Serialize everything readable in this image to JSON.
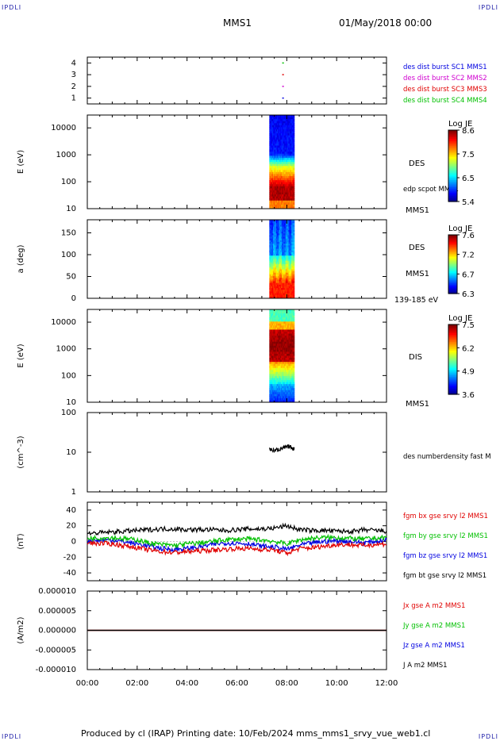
{
  "corners": {
    "tl": "IPDLI",
    "tr": "IPDLI",
    "bl": "IPDLI",
    "br": "IPDLI"
  },
  "header": {
    "spacecraft": "MMS1",
    "datetime": "01/May/2018 00:00"
  },
  "footer": {
    "text": "Produced by cl (IRAP)   Printing date: 10/Feb/2024   mms_mms1_srvy_vue_web1.cl"
  },
  "time_axis": {
    "ticks": [
      "00:00",
      "02:00",
      "04:00",
      "06:00",
      "08:00",
      "10:00",
      "12:00"
    ],
    "range_hours": [
      0,
      12
    ]
  },
  "colors": {
    "red": "#e00000",
    "green": "#00c000",
    "blue": "#0000e0",
    "magenta": "#d000d0",
    "black": "#000000"
  },
  "chart_data": [
    {
      "type": "scatter",
      "panel": "burst-availability",
      "y_ticks": [
        "1",
        "2",
        "3",
        "4"
      ],
      "ylim": [
        0.5,
        4.5
      ],
      "legend": [
        {
          "label": "des dist burst SC1 MMS1",
          "color": "#0000e0"
        },
        {
          "label": "des dist burst SC2 MMS2",
          "color": "#d000d0"
        },
        {
          "label": "des dist burst SC3 MMS3",
          "color": "#e00000"
        },
        {
          "label": "des dist burst SC4 MMS4",
          "color": "#00c000"
        }
      ],
      "series": [
        {
          "name": "des dist burst SC1 MMS1",
          "x": [
            7.85
          ],
          "y": [
            1
          ]
        },
        {
          "name": "des dist burst SC2 MMS2",
          "x": [
            7.85
          ],
          "y": [
            2
          ]
        },
        {
          "name": "des dist burst SC3 MMS3",
          "x": [
            7.85
          ],
          "y": [
            3
          ]
        },
        {
          "name": "des dist burst SC4 MMS4",
          "x": [
            7.85
          ],
          "y": [
            4
          ]
        }
      ]
    },
    {
      "type": "heatmap",
      "panel": "des-energy",
      "ylabel": "E (eV)",
      "y_scale": "log",
      "ylim": [
        10,
        30000
      ],
      "y_ticks": [
        "10",
        "100",
        "1000",
        "10000"
      ],
      "label": "DES",
      "sublabel": "edp scpot MMS1",
      "bottom_label": "MMS1",
      "x_range": [
        7.3,
        8.3
      ],
      "colorbar": {
        "title": "Log JE",
        "ticks": [
          "8.6",
          "7.5",
          "6.5",
          "5.4"
        ],
        "range": [
          5.4,
          8.6
        ]
      }
    },
    {
      "type": "heatmap",
      "panel": "des-pitch",
      "ylabel": "a (deg)",
      "ylim": [
        0,
        180
      ],
      "y_ticks": [
        "0",
        "50",
        "100",
        "150"
      ],
      "label": "DES",
      "sublabel": "MMS1",
      "bottom_label": "139-185 eV",
      "x_range": [
        7.3,
        8.3
      ],
      "colorbar": {
        "title": "Log JE",
        "ticks": [
          "7.6",
          "7.2",
          "6.7",
          "6.3"
        ],
        "range": [
          6.3,
          7.6
        ]
      }
    },
    {
      "type": "heatmap",
      "panel": "dis-energy",
      "ylabel": "E (eV)",
      "y_scale": "log",
      "ylim": [
        10,
        30000
      ],
      "y_ticks": [
        "10",
        "100",
        "1000",
        "10000"
      ],
      "label": "DIS",
      "bottom_label": "MMS1",
      "x_range": [
        7.3,
        8.3
      ],
      "colorbar": {
        "title": "Log JE",
        "ticks": [
          "7.5",
          "6.2",
          "4.9",
          "3.6"
        ],
        "range": [
          3.6,
          7.5
        ]
      }
    },
    {
      "type": "line",
      "panel": "density",
      "ylabel": "(cm^-3)",
      "y_scale": "log",
      "ylim": [
        1,
        100
      ],
      "y_ticks": [
        "1",
        "10",
        "100"
      ],
      "legend": [
        {
          "label": "des numberdensity fast M",
          "color": "#000000"
        }
      ],
      "series": [
        {
          "name": "des numberdensity fast M",
          "x": [
            7.3,
            7.5,
            7.7,
            7.9,
            8.1,
            8.3
          ],
          "y": [
            12,
            11,
            12,
            13,
            14,
            12
          ]
        }
      ]
    },
    {
      "type": "line",
      "panel": "magnetic-field",
      "ylabel": "(nT)",
      "ylim": [
        -50,
        50
      ],
      "y_ticks": [
        "-40",
        "-20",
        "0",
        "20",
        "40"
      ],
      "legend": [
        {
          "label": "fgm bx gse srvy l2 MMS1",
          "color": "#e00000"
        },
        {
          "label": "fgm by gse srvy l2 MMS1",
          "color": "#00c000"
        },
        {
          "label": "fgm bz gse srvy l2 MMS1",
          "color": "#0000e0"
        },
        {
          "label": "fgm bt gse srvy l2 MMS1",
          "color": "#000000"
        }
      ],
      "x": [
        0,
        1,
        2,
        2.5,
        3,
        3.5,
        4,
        4.5,
        5,
        5.5,
        6,
        6.5,
        7,
        7.5,
        8,
        8.5,
        9,
        9.5,
        10,
        10.5,
        11,
        11.5,
        12
      ],
      "series": [
        {
          "name": "fgm bx gse srvy l2 MMS1",
          "values": [
            -2,
            -3,
            -8,
            -11,
            -13,
            -14,
            -13,
            -12,
            -11,
            -10,
            -9,
            -9,
            -10,
            -11,
            -15,
            -9,
            -8,
            -6,
            -4,
            -4,
            -5,
            -4,
            -3
          ]
        },
        {
          "name": "fgm by gse srvy l2 MMS1",
          "values": [
            4,
            5,
            2,
            -2,
            -4,
            -5,
            -3,
            -2,
            0,
            2,
            3,
            3,
            2,
            0,
            -3,
            2,
            4,
            5,
            5,
            4,
            3,
            4,
            5
          ]
        },
        {
          "name": "fgm bz gse srvy l2 MMS1",
          "values": [
            1,
            2,
            -3,
            -6,
            -9,
            -10,
            -9,
            -7,
            -4,
            -2,
            -2,
            -3,
            -6,
            -7,
            -10,
            -5,
            -2,
            0,
            1,
            0,
            -1,
            0,
            2
          ]
        },
        {
          "name": "fgm bt gse srvy l2 MMS1",
          "values": [
            10,
            12,
            14,
            15,
            16,
            16,
            15,
            15,
            15,
            14,
            15,
            16,
            16,
            17,
            20,
            15,
            14,
            14,
            13,
            13,
            13,
            14,
            13
          ]
        }
      ]
    },
    {
      "type": "line",
      "panel": "current-density",
      "ylabel": "(A/m2)",
      "ylim": [
        -1e-05,
        1e-05
      ],
      "y_ticks": [
        "-0.000010",
        "-0.000005",
        "0.000000",
        "0.000005",
        "0.000010"
      ],
      "legend": [
        {
          "label": "Jx gse A m2 MMS1",
          "color": "#e00000"
        },
        {
          "label": "Jy gse A m2 MMS1",
          "color": "#00c000"
        },
        {
          "label": "Jz gse A m2 MMS1",
          "color": "#0000e0"
        },
        {
          "label": "J A m2 MMS1",
          "color": "#000000"
        }
      ],
      "series": [
        {
          "name": "Jx gse A m2 MMS1",
          "x": [
            0,
            12
          ],
          "y": [
            0,
            0
          ]
        },
        {
          "name": "J A m2 MMS1",
          "x": [
            0,
            12
          ],
          "y": [
            0,
            0
          ]
        }
      ]
    }
  ]
}
